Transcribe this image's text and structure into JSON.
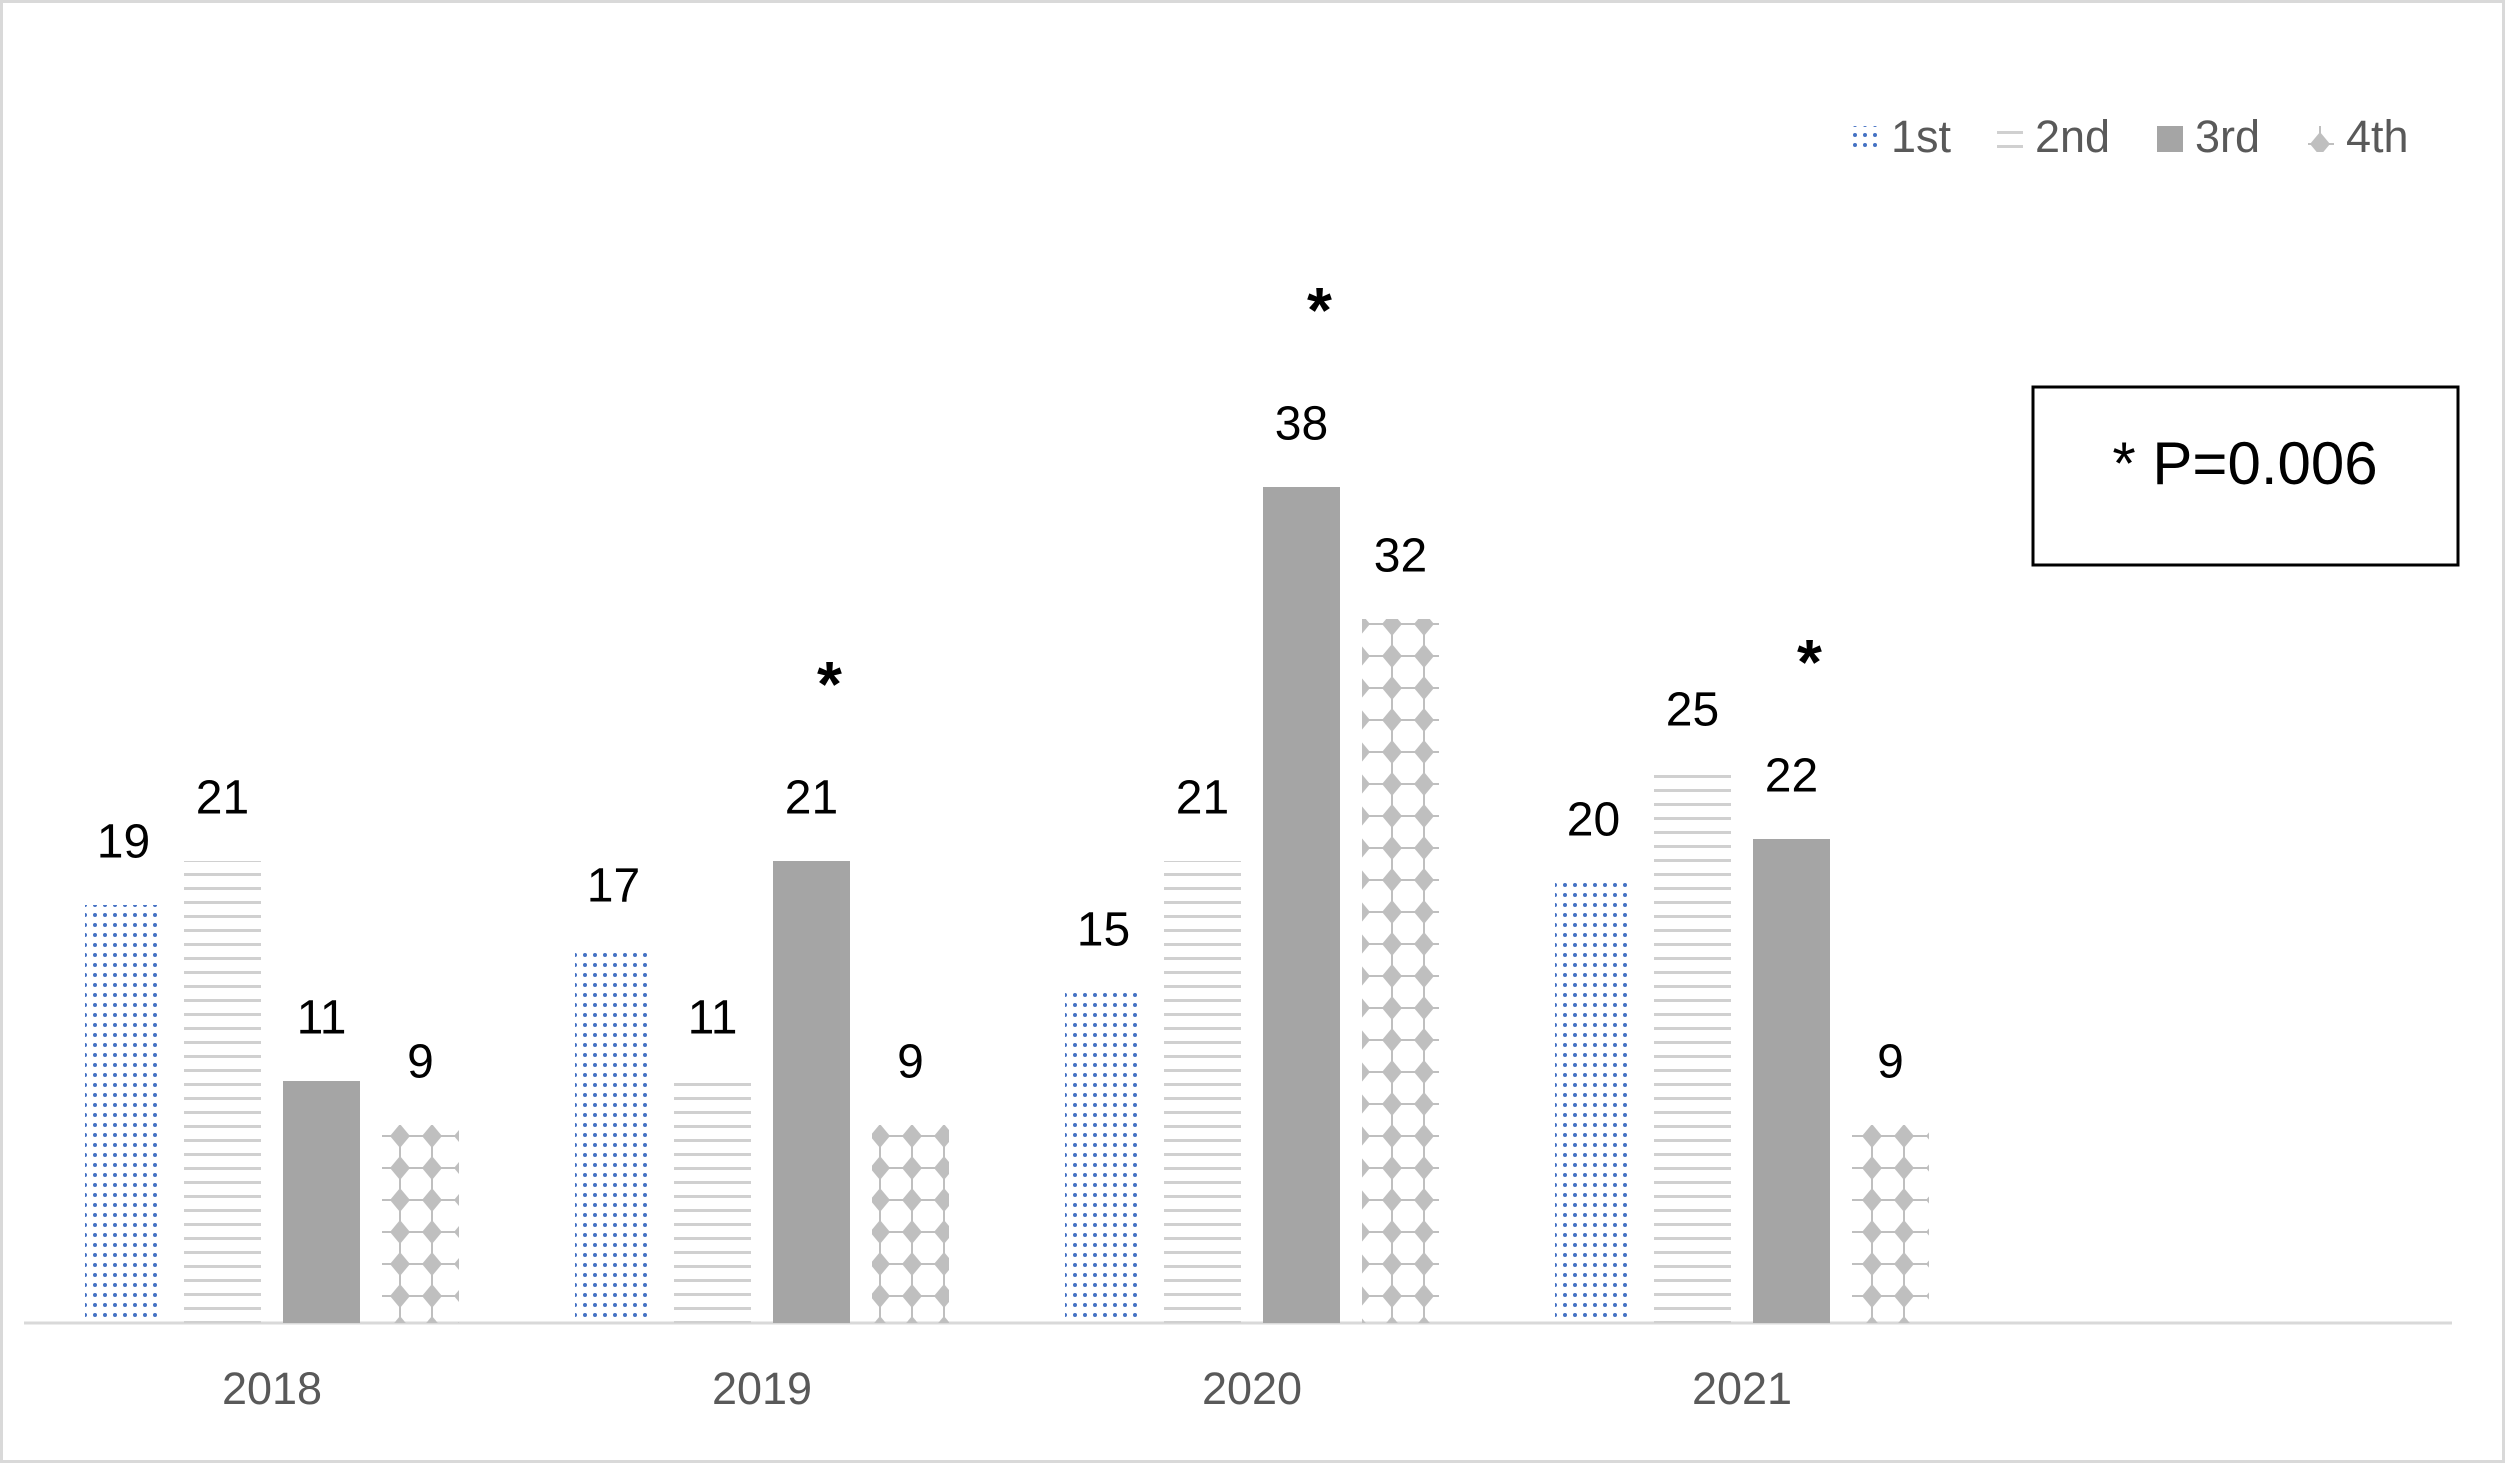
{
  "chart_data": {
    "type": "bar",
    "categories": [
      "2018",
      "2019",
      "2020",
      "2021"
    ],
    "series": [
      {
        "name": "1st",
        "color": "#4472c4",
        "values": [
          19,
          17,
          15,
          20
        ]
      },
      {
        "name": "2nd",
        "color": "#d0d0d0",
        "values": [
          21,
          11,
          21,
          25
        ]
      },
      {
        "name": "3rd",
        "color": "#a5a5a5",
        "values": [
          11,
          21,
          38,
          22
        ]
      },
      {
        "name": "4th",
        "color": "#bfbfbf",
        "values": [
          9,
          9,
          32,
          9
        ]
      }
    ],
    "significance": [
      {
        "label": "*",
        "category": "2019",
        "series": "3rd"
      },
      {
        "label": "*",
        "category": "2020",
        "series": "3rd"
      },
      {
        "label": "*",
        "category": "2021",
        "series": "3rd"
      }
    ],
    "note": "* P=0.006",
    "legend": "top-right"
  }
}
